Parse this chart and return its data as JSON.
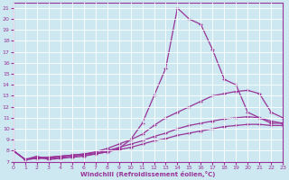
{
  "bg_color": "#cde8f0",
  "grid_color": "#ffffff",
  "line_color": "#993399",
  "marker": "+",
  "xlabel": "Windchill (Refroidissement éolien,°C)",
  "xlim": [
    0,
    23
  ],
  "ylim": [
    7,
    21.5
  ],
  "yticks": [
    7,
    8,
    9,
    10,
    11,
    12,
    13,
    14,
    15,
    16,
    17,
    18,
    19,
    20,
    21
  ],
  "xticks": [
    0,
    1,
    2,
    3,
    4,
    5,
    6,
    7,
    8,
    9,
    10,
    11,
    12,
    13,
    14,
    15,
    16,
    17,
    18,
    19,
    20,
    21,
    22,
    23
  ],
  "series": [
    {
      "x": [
        0,
        1,
        2,
        3,
        4,
        5,
        6,
        7,
        8,
        9,
        10,
        11,
        12,
        13,
        14,
        15,
        16,
        17,
        18,
        19,
        20,
        21,
        22,
        23
      ],
      "y": [
        8.0,
        7.2,
        7.5,
        7.2,
        7.3,
        7.4,
        7.5,
        7.7,
        7.9,
        8.2,
        9.0,
        10.5,
        13.0,
        15.5,
        21.0,
        20.0,
        19.5,
        17.2,
        14.5,
        14.0,
        11.5,
        11.0,
        10.5,
        10.5
      ]
    },
    {
      "x": [
        0,
        1,
        2,
        3,
        4,
        5,
        6,
        7,
        8,
        9,
        10,
        11,
        12,
        13,
        14,
        15,
        16,
        17,
        18,
        19,
        20,
        21,
        22,
        23
      ],
      "y": [
        8.0,
        7.2,
        7.4,
        7.4,
        7.5,
        7.6,
        7.7,
        7.9,
        8.2,
        8.6,
        9.0,
        9.5,
        10.3,
        11.0,
        11.5,
        12.0,
        12.5,
        13.0,
        13.2,
        13.4,
        13.5,
        13.2,
        11.5,
        11.0
      ]
    },
    {
      "x": [
        0,
        1,
        2,
        3,
        4,
        5,
        6,
        7,
        8,
        9,
        10,
        11,
        12,
        13,
        14,
        15,
        16,
        17,
        18,
        19,
        20,
        21,
        22,
        23
      ],
      "y": [
        8.0,
        7.2,
        7.3,
        7.4,
        7.5,
        7.6,
        7.7,
        7.8,
        8.0,
        8.3,
        8.6,
        8.9,
        9.3,
        9.6,
        10.0,
        10.3,
        10.5,
        10.7,
        10.9,
        11.0,
        11.1,
        11.0,
        10.7,
        10.5
      ]
    },
    {
      "x": [
        0,
        1,
        2,
        3,
        4,
        5,
        6,
        7,
        8,
        9,
        10,
        11,
        12,
        13,
        14,
        15,
        16,
        17,
        18,
        19,
        20,
        21,
        22,
        23
      ],
      "y": [
        8.0,
        7.2,
        7.3,
        7.3,
        7.4,
        7.5,
        7.6,
        7.7,
        7.9,
        8.1,
        8.3,
        8.6,
        8.9,
        9.1,
        9.4,
        9.6,
        9.8,
        10.0,
        10.2,
        10.3,
        10.4,
        10.4,
        10.3,
        10.3
      ]
    }
  ]
}
